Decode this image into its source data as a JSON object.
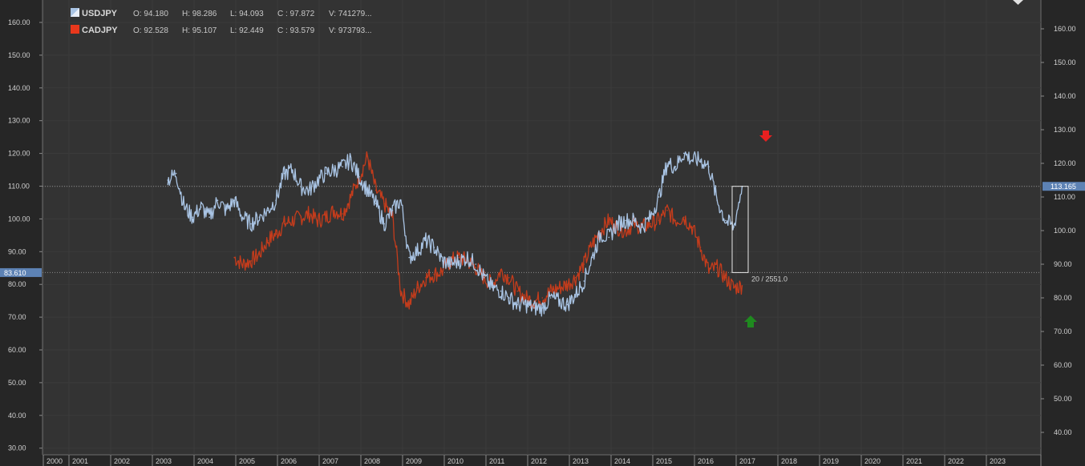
{
  "chart_data": {
    "type": "line",
    "left_axis": {
      "range": [
        25,
        168
      ],
      "ticks": [
        "160.00",
        "150.00",
        "140.00",
        "130.00",
        "120.00",
        "110.00",
        "100.00",
        "90.00",
        "80.00",
        "70.00",
        "60.00",
        "50.00",
        "40.00",
        "30.00"
      ]
    },
    "right_axis": {
      "range": [
        34,
        170
      ],
      "ticks": [
        "160.00",
        "150.00",
        "140.00",
        "130.00",
        "120.00",
        "110.00",
        "100.00",
        "90.00",
        "80.00",
        "70.00",
        "60.00",
        "50.00",
        "40.00"
      ]
    },
    "x_axis": {
      "ticks": [
        "2000",
        "2001",
        "2002",
        "2003",
        "2004",
        "2005",
        "2006",
        "2007",
        "2008",
        "2009",
        "2010",
        "2011",
        "2012",
        "2013",
        "2014",
        "2015",
        "2016",
        "2017",
        "2018",
        "2019",
        "2020",
        "2021",
        "2022",
        "2023"
      ]
    },
    "grid": true,
    "series": [
      {
        "name": "USDJPY",
        "color": "#a9c4e4",
        "legend": {
          "symbol": "USDJPY",
          "open": "O: 94.180",
          "high": "H: 98.286",
          "low": "L: 94.093",
          "close": "C : 97.872",
          "volume": "V: 741279..."
        },
        "x": [
          2003.0,
          2003.2,
          2003.4,
          2003.6,
          2003.8,
          2004.0,
          2004.2,
          2004.4,
          2004.6,
          2004.8,
          2005.0,
          2005.2,
          2005.4,
          2005.6,
          2005.8,
          2006.0,
          2006.2,
          2006.4,
          2006.6,
          2006.8,
          2007.0,
          2007.2,
          2007.4,
          2007.6,
          2007.8,
          2008.0,
          2008.2,
          2008.4,
          2008.6,
          2008.8,
          2009.0,
          2009.2,
          2009.4,
          2009.6,
          2009.8,
          2010.0,
          2010.2,
          2010.4,
          2010.6,
          2010.8,
          2011.0,
          2011.2,
          2011.4,
          2011.6,
          2011.8,
          2012.0,
          2012.2,
          2012.4,
          2012.6,
          2012.8,
          2013.0,
          2013.2,
          2013.4,
          2013.6,
          2013.8,
          2014.0,
          2014.2,
          2014.4,
          2014.6,
          2014.8,
          2015.0,
          2015.2,
          2015.4,
          2015.6,
          2015.8,
          2016.0,
          2016.2,
          2016.4,
          2016.6,
          2016.8
        ],
        "y": [
          115,
          117,
          107,
          104,
          107,
          104,
          109,
          106,
          109,
          104,
          102,
          104,
          106,
          109,
          117,
          118,
          113,
          112,
          115,
          117,
          118,
          119,
          121,
          116,
          112,
          108,
          102,
          106,
          109,
          92,
          94,
          97,
          95,
          91,
          90,
          91,
          92,
          90,
          86,
          83,
          82,
          80,
          78,
          78,
          77,
          77,
          80,
          79,
          78,
          81,
          85,
          92,
          99,
          98,
          102,
          103,
          103,
          101,
          104,
          110,
          120,
          119,
          123,
          121,
          121,
          119,
          109,
          103,
          101,
          113.165
        ]
      },
      {
        "name": "CADJPY",
        "color": "#c43c1c",
        "legend": {
          "symbol": "CADJPY",
          "open": "O: 92.528",
          "high": "H: 95.107",
          "low": "L: 92.449",
          "close": "C : 93.579",
          "volume": "V: 973793..."
        },
        "x": [
          2004.6,
          2004.8,
          2005.0,
          2005.2,
          2005.4,
          2005.6,
          2005.8,
          2006.0,
          2006.2,
          2006.4,
          2006.6,
          2006.8,
          2007.0,
          2007.2,
          2007.4,
          2007.6,
          2007.8,
          2008.0,
          2008.2,
          2008.4,
          2008.6,
          2008.8,
          2009.0,
          2009.2,
          2009.4,
          2009.6,
          2009.8,
          2010.0,
          2010.2,
          2010.4,
          2010.6,
          2010.8,
          2011.0,
          2011.2,
          2011.4,
          2011.6,
          2011.8,
          2012.0,
          2012.2,
          2012.4,
          2012.6,
          2012.8,
          2013.0,
          2013.2,
          2013.4,
          2013.6,
          2013.8,
          2014.0,
          2014.2,
          2014.4,
          2014.6,
          2014.8,
          2015.0,
          2015.2,
          2015.4,
          2015.6,
          2015.8,
          2016.0,
          2016.2,
          2016.4,
          2016.6,
          2016.8
        ],
        "y": [
          92,
          90,
          91,
          93,
          97,
          99,
          102,
          103,
          104,
          105,
          103,
          104,
          106,
          105,
          110,
          116,
          122,
          112,
          108,
          104,
          82,
          78,
          83,
          86,
          87,
          88,
          91,
          92,
          91,
          89,
          86,
          84,
          88,
          86,
          82,
          80,
          79,
          80,
          82,
          83,
          84,
          86,
          90,
          96,
          100,
          103,
          101,
          100,
          102,
          101,
          102,
          103,
          106,
          103,
          104,
          101,
          95,
          88,
          89,
          86,
          83,
          83.61
        ]
      }
    ],
    "price_labels": {
      "right": "113.165",
      "left": "83.610"
    },
    "measure": {
      "label": "20 / 2551.0",
      "top": 113.165,
      "bottom": 83.61
    },
    "signals": [
      {
        "type": "sell",
        "color": "#e82020"
      },
      {
        "type": "buy",
        "color": "#1f8a1f"
      }
    ]
  }
}
